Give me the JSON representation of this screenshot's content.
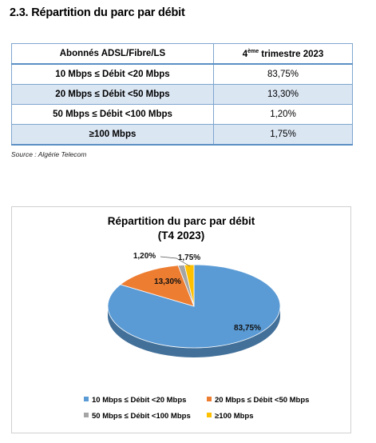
{
  "heading": "2.3. Répartition du parc par débit",
  "table": {
    "col1_header": "Abonnés ADSL/Fibre/LS",
    "col2_header_pre": "4",
    "col2_header_sup": "ème",
    "col2_header_post": " trimestre 2023",
    "rows": [
      {
        "label": "10 Mbps ≤ Débit <20 Mbps",
        "value": "83,75%"
      },
      {
        "label": "20 Mbps ≤ Débit <50 Mbps",
        "value": "13,30%"
      },
      {
        "label": "50 Mbps ≤ Débit <100 Mbps",
        "value": "1,20%"
      },
      {
        "label": "≥100 Mbps",
        "value": "1,75%"
      }
    ]
  },
  "source": "Source : Algérie Telecom",
  "chart_data": {
    "type": "pie",
    "title": "Répartition du parc par débit",
    "subtitle": "(T4 2023)",
    "categories": [
      "10 Mbps ≤ Débit <20 Mbps",
      "20 Mbps ≤ Débit <50 Mbps",
      "50 Mbps ≤ Débit <100 Mbps",
      "≥100 Mbps"
    ],
    "values": [
      83.75,
      13.3,
      1.2,
      1.75
    ],
    "data_labels": [
      "83,75%",
      "13,30%",
      "1,20%",
      "1,75%"
    ],
    "colors": [
      "#5b9bd5",
      "#ed7d31",
      "#a5a5a5",
      "#ffc000"
    ],
    "legend_position": "bottom"
  }
}
